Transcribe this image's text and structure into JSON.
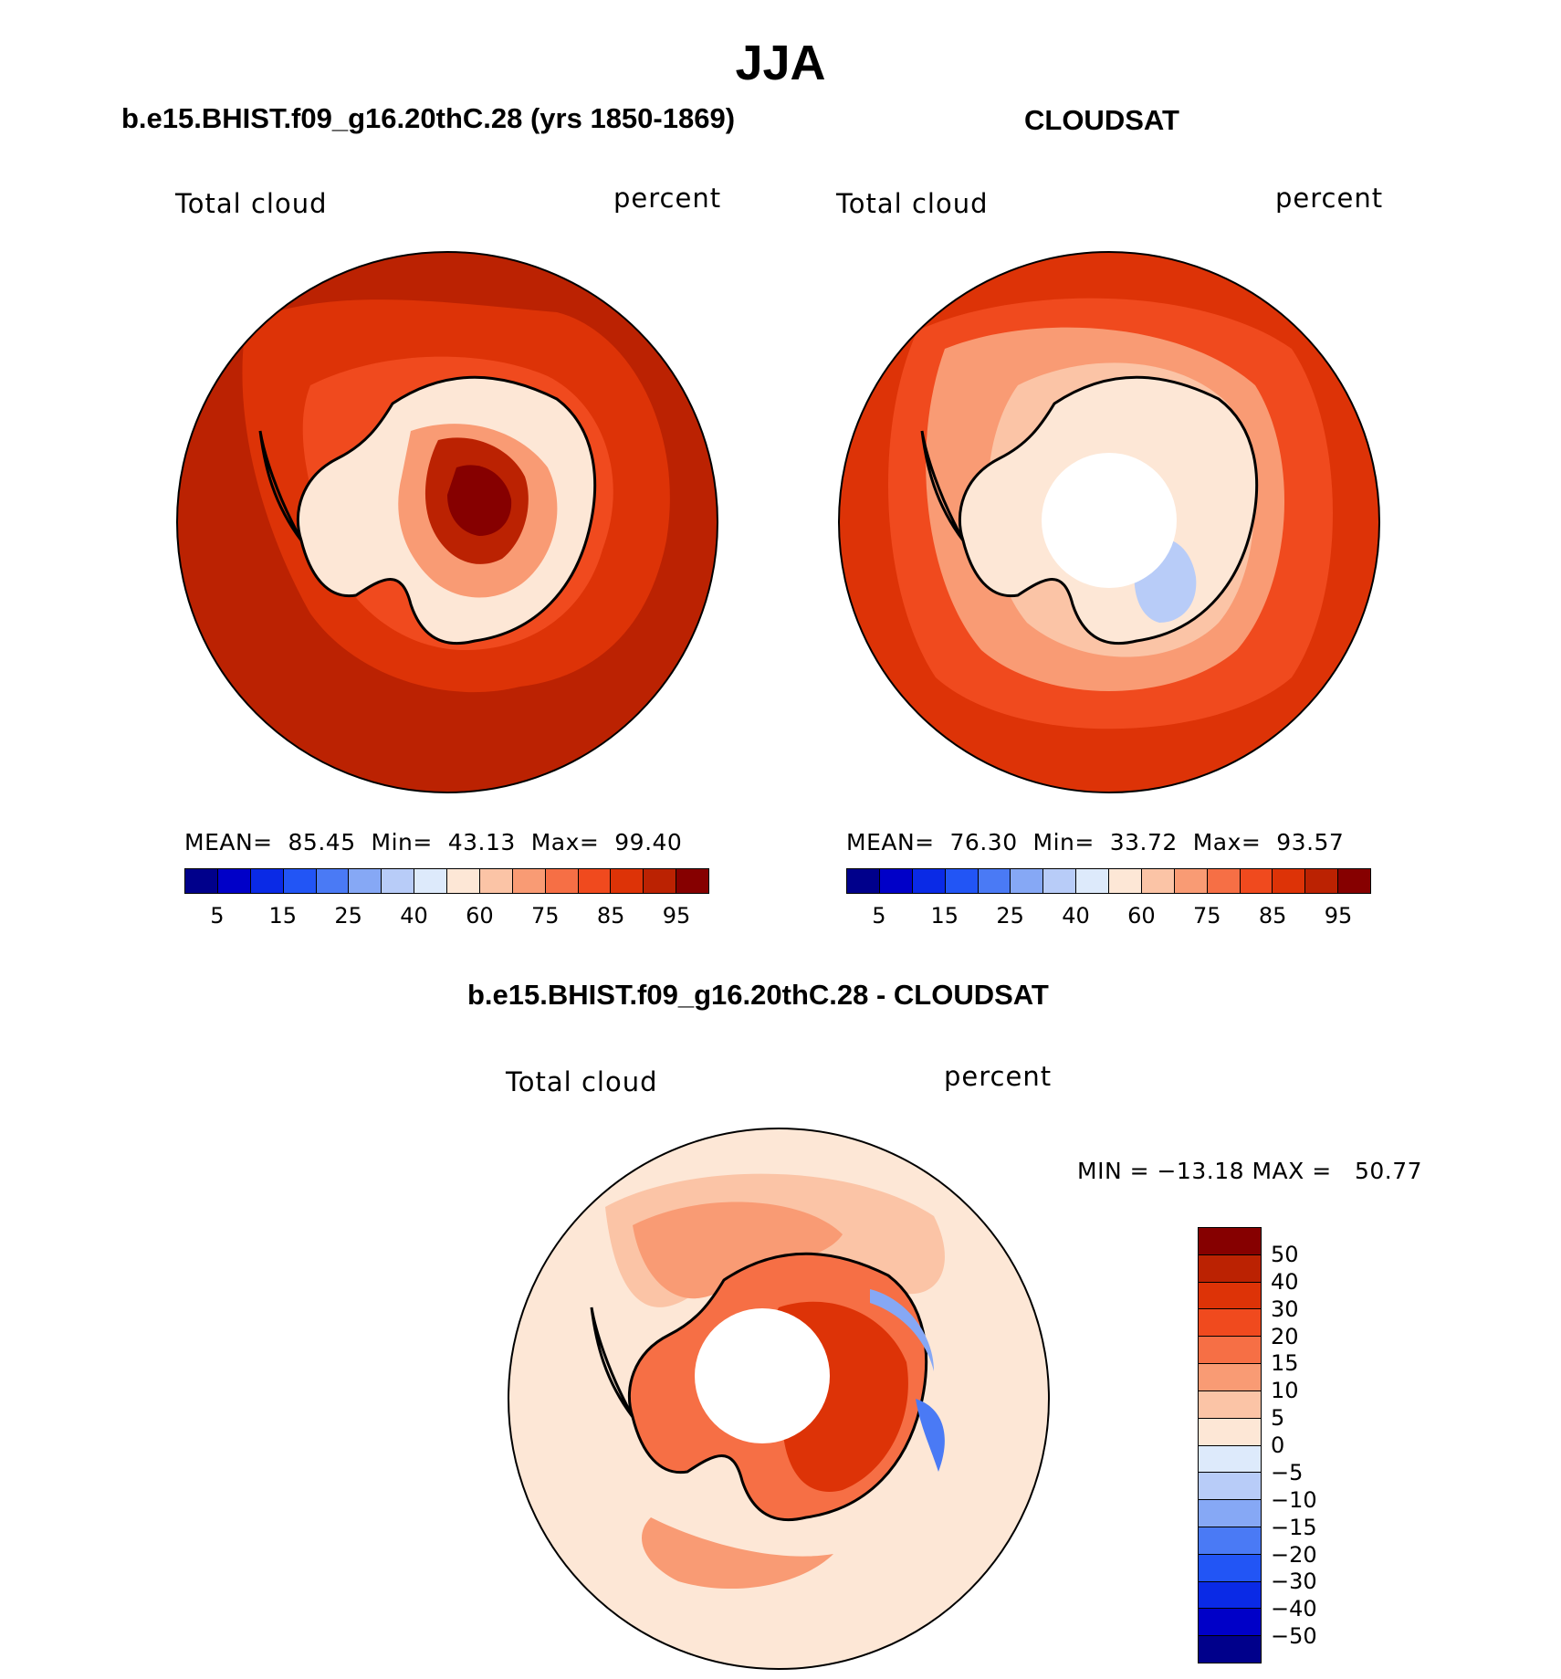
{
  "title": "JJA",
  "panels": {
    "model": {
      "title": "b.e15.BHIST.f09_g16.20thC.28 (yrs 1850-1869)",
      "variable": "Total cloud",
      "units": "percent",
      "mean_label": "MEAN=",
      "mean": "85.45",
      "min_label": "Min=",
      "min": "43.13",
      "max_label": "Max=",
      "max": "99.40"
    },
    "obs": {
      "title": "CLOUDSAT",
      "variable": "Total cloud",
      "units": "percent",
      "mean_label": "MEAN=",
      "mean": "76.30",
      "min_label": "Min=",
      "min": "33.72",
      "max_label": "Max=",
      "max": "93.57"
    },
    "diff": {
      "title": "b.e15.BHIST.f09_g16.20thC.28 - CLOUDSAT",
      "variable": "Total cloud",
      "units": "percent",
      "minmax_text": "MIN = −13.18 MAX =   50.77"
    }
  },
  "abs_colorbar": {
    "colors": [
      "#00008b",
      "#0000c8",
      "#0a2ae6",
      "#2255f5",
      "#4a7af5",
      "#86a8f5",
      "#b8ccf8",
      "#ddeafb",
      "#fde7d6",
      "#fbc4a6",
      "#f99b74",
      "#f66f45",
      "#f04a1e",
      "#dd3307",
      "#bb2202",
      "#860000"
    ],
    "tick_labels": [
      "5",
      "15",
      "25",
      "40",
      "60",
      "75",
      "85",
      "95"
    ]
  },
  "diff_colorbar": {
    "colors": [
      "#860000",
      "#bb2202",
      "#dd3307",
      "#f04a1e",
      "#f66f45",
      "#f99b74",
      "#fbc4a6",
      "#fde7d6",
      "#ddeafb",
      "#b8ccf8",
      "#86a8f5",
      "#4a7af5",
      "#2255f5",
      "#0a2ae6",
      "#0000c8",
      "#00008b"
    ],
    "tick_labels": [
      "50",
      "40",
      "30",
      "20",
      "15",
      "10",
      "5",
      "0",
      "−5",
      "−10",
      "−15",
      "−20",
      "−30",
      "−40",
      "−50"
    ]
  }
}
